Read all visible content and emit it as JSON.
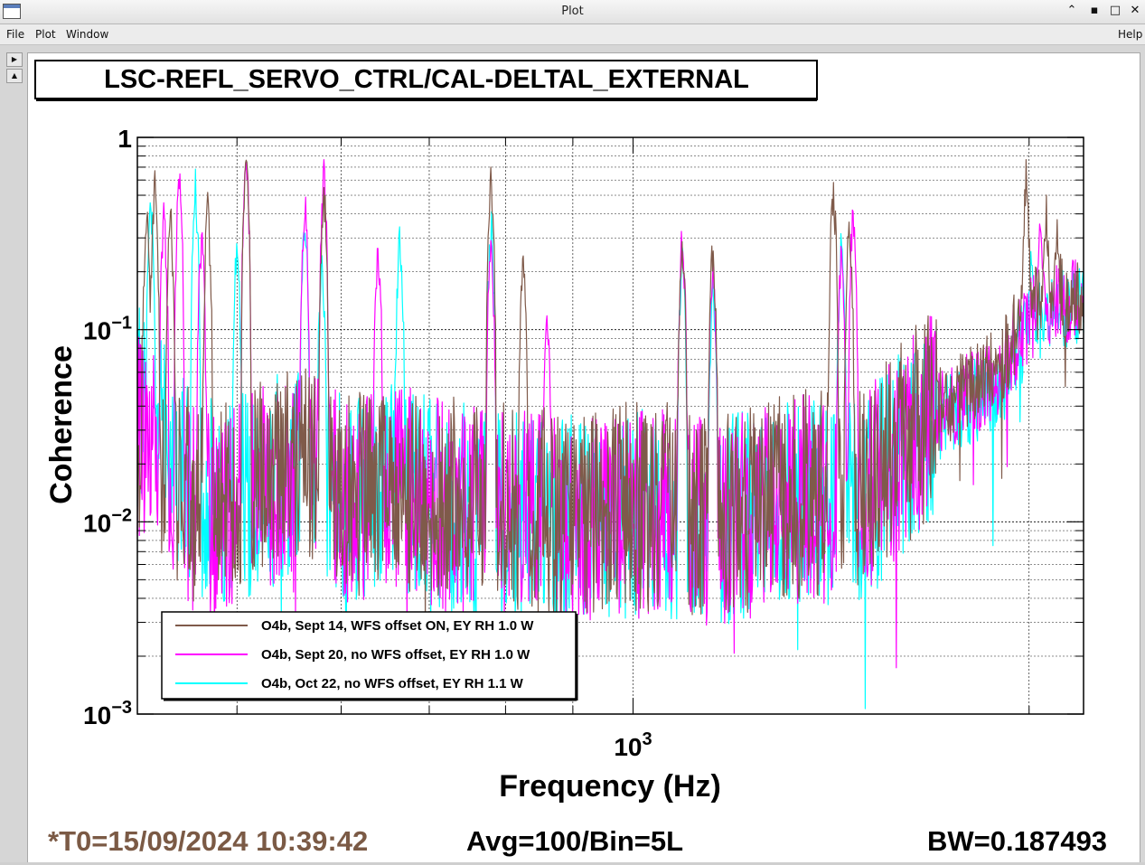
{
  "window": {
    "title": "Plot",
    "controls": [
      "minimize-icon",
      "restore-icon",
      "maximize-icon",
      "close-icon"
    ]
  },
  "menu": {
    "file": "File",
    "plot": "Plot",
    "window": "Window",
    "help": "Help"
  },
  "sidebar": {
    "buttons": [
      "play-icon",
      "up-icon"
    ]
  },
  "plot": {
    "title": "LSC-REFL_SERVO_CTRL/CAL-DELTAL_EXTERNAL",
    "footer": {
      "t0": "*T0=15/09/2024 10:39:42",
      "avg": "Avg=100/Bin=5L",
      "bw": "BW=0.187493"
    },
    "colors": {
      "background": "#ffffff",
      "frame": "#000000",
      "grid": "#000000",
      "t0_text": "#7b5a45"
    }
  },
  "chart_data": {
    "type": "line",
    "title": "LSC-REFL_SERVO_CTRL/CAL-DELTAL_EXTERNAL",
    "xlabel": "Frequency (Hz)",
    "ylabel": "Coherence",
    "x_scale": "log",
    "y_scale": "log",
    "xlim": [
      420,
      2200
    ],
    "ylim": [
      0.001,
      1
    ],
    "x_tick_labels": [
      "10^3"
    ],
    "y_tick_labels": [
      "1",
      "10^-1",
      "10^-2",
      "10^-3"
    ],
    "grid": true,
    "legend_position": "bottom-left",
    "series": [
      {
        "name": "O4b, Sept 14, WFS offset ON, EY RH 1.0 W",
        "color": "#7f5a4a",
        "baseline": [
          [
            420,
            0.03
          ],
          [
            470,
            0.012
          ],
          [
            520,
            0.015
          ],
          [
            560,
            0.02
          ],
          [
            610,
            0.014
          ],
          [
            660,
            0.016
          ],
          [
            720,
            0.013
          ],
          [
            800,
            0.012
          ],
          [
            880,
            0.011
          ],
          [
            960,
            0.012
          ],
          [
            1050,
            0.012
          ],
          [
            1150,
            0.011
          ],
          [
            1250,
            0.012
          ],
          [
            1350,
            0.014
          ],
          [
            1450,
            0.014
          ],
          [
            1530,
            0.017
          ],
          [
            1600,
            0.025
          ],
          [
            1680,
            0.035
          ],
          [
            1760,
            0.045
          ],
          [
            1850,
            0.06
          ],
          [
            1900,
            0.065
          ],
          [
            1960,
            0.1
          ],
          [
            2020,
            0.13
          ],
          [
            2060,
            0.14
          ],
          [
            2100,
            0.15
          ]
        ],
        "peaks": [
          [
            427,
            0.5
          ],
          [
            433,
            0.75
          ],
          [
            445,
            0.5
          ],
          [
            475,
            0.55
          ],
          [
            508,
            0.95
          ],
          [
            582,
            0.7
          ],
          [
            780,
            0.75
          ],
          [
            825,
            0.3
          ],
          [
            1090,
            0.35
          ],
          [
            1150,
            0.35
          ],
          [
            1420,
            0.7
          ],
          [
            1460,
            0.5
          ],
          [
            1990,
            0.8
          ],
          [
            2060,
            0.55
          ],
          [
            2100,
            0.4
          ]
        ]
      },
      {
        "name": "O4b, Sept 20, no WFS offset, EY RH 1.0 W",
        "color": "#ff00ff",
        "baseline": [
          [
            420,
            0.03
          ],
          [
            470,
            0.01
          ],
          [
            520,
            0.014
          ],
          [
            560,
            0.018
          ],
          [
            610,
            0.013
          ],
          [
            660,
            0.015
          ],
          [
            720,
            0.012
          ],
          [
            800,
            0.011
          ],
          [
            880,
            0.01
          ],
          [
            960,
            0.011
          ],
          [
            1050,
            0.011
          ],
          [
            1150,
            0.01
          ],
          [
            1250,
            0.011
          ],
          [
            1350,
            0.013
          ],
          [
            1450,
            0.013
          ],
          [
            1530,
            0.016
          ],
          [
            1600,
            0.023
          ],
          [
            1680,
            0.033
          ],
          [
            1760,
            0.042
          ],
          [
            1850,
            0.05
          ],
          [
            1900,
            0.06
          ],
          [
            1960,
            0.09
          ],
          [
            2020,
            0.12
          ],
          [
            2060,
            0.13
          ],
          [
            2100,
            0.14
          ]
        ],
        "peaks": [
          [
            440,
            0.5
          ],
          [
            452,
            0.85
          ],
          [
            470,
            0.4
          ],
          [
            508,
            1.0
          ],
          [
            563,
            0.6
          ],
          [
            582,
            0.8
          ],
          [
            640,
            0.35
          ],
          [
            780,
            0.35
          ],
          [
            860,
            0.15
          ],
          [
            1090,
            0.4
          ],
          [
            1150,
            0.25
          ],
          [
            1440,
            0.3
          ],
          [
            1470,
            0.55
          ],
          [
            2040,
            0.5
          ]
        ]
      },
      {
        "name": "O4b, Oct 22, no WFS offset, EY RH 1.1 W",
        "color": "#00ffff",
        "baseline": [
          [
            420,
            0.04
          ],
          [
            470,
            0.012
          ],
          [
            520,
            0.015
          ],
          [
            560,
            0.019
          ],
          [
            610,
            0.013
          ],
          [
            660,
            0.015
          ],
          [
            720,
            0.012
          ],
          [
            800,
            0.011
          ],
          [
            880,
            0.01
          ],
          [
            960,
            0.011
          ],
          [
            1050,
            0.011
          ],
          [
            1150,
            0.01
          ],
          [
            1250,
            0.011
          ],
          [
            1350,
            0.013
          ],
          [
            1450,
            0.012
          ],
          [
            1530,
            0.015
          ],
          [
            1600,
            0.022
          ],
          [
            1680,
            0.03
          ],
          [
            1760,
            0.038
          ],
          [
            1850,
            0.045
          ],
          [
            1900,
            0.05
          ],
          [
            1960,
            0.08
          ],
          [
            2020,
            0.11
          ],
          [
            2060,
            0.12
          ],
          [
            2100,
            0.13
          ]
        ],
        "peaks": [
          [
            430,
            0.6
          ],
          [
            465,
            0.7
          ],
          [
            500,
            0.35
          ],
          [
            563,
            0.45
          ],
          [
            580,
            0.3
          ],
          [
            665,
            0.4
          ],
          [
            780,
            0.45
          ],
          [
            1090,
            0.3
          ],
          [
            1150,
            0.2
          ],
          [
            1440,
            0.35
          ],
          [
            2010,
            0.35
          ]
        ]
      }
    ]
  }
}
